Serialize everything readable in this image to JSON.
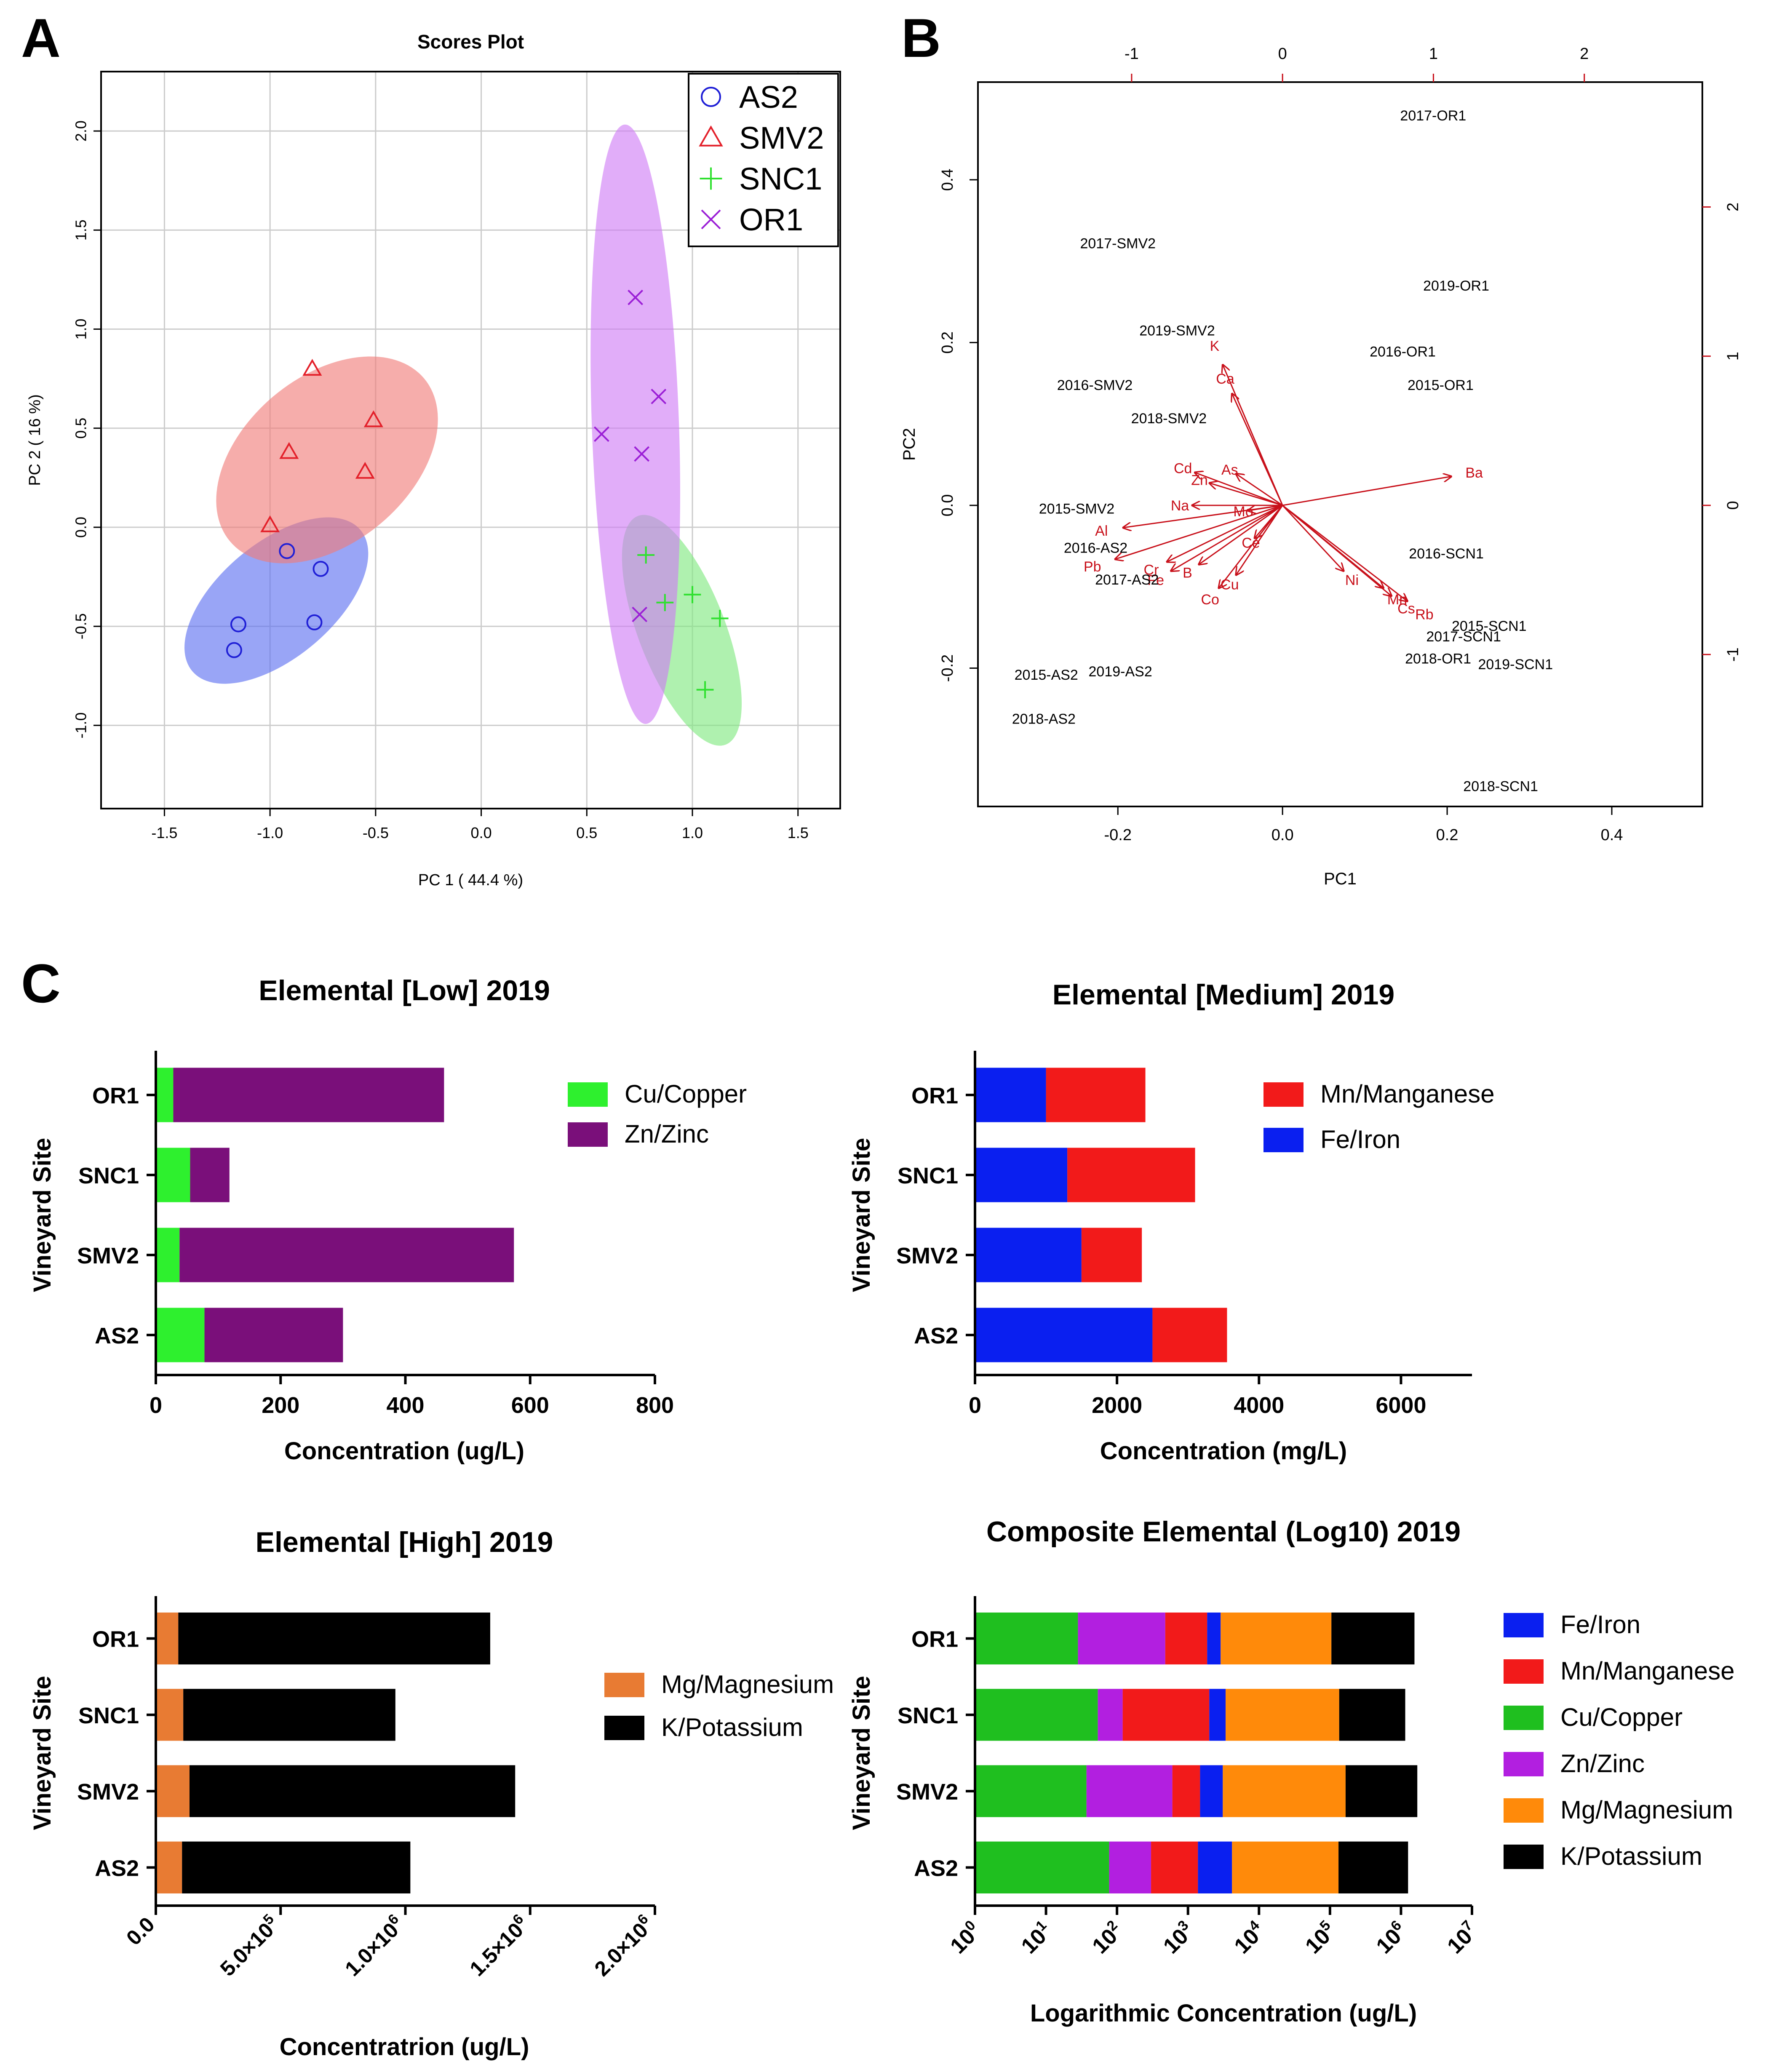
{
  "panel_labels": {
    "a": "A",
    "b": "B",
    "c": "C"
  },
  "colors": {
    "AS2": "#1f1fd6",
    "SMV2": "#e3202a",
    "SNC1": "#2fe02f",
    "OR1": "#9b1fd6",
    "ell_AS2": "#5a6ef0",
    "ell_SMV2": "#f07a78",
    "ell_SNC1": "#7ee87e",
    "ell_OR1": "#cf7af5",
    "bright_green": "#2ef02e",
    "purple": "#7a0f7a",
    "blue": "#0a1ff0",
    "red": "#f21a1a",
    "orange_mg": "#e87b33",
    "black": "#000000",
    "green": "#1fbf1f",
    "violet": "#b21fe0",
    "orange": "#ff8a0a",
    "biplot_red": "#c8101a"
  },
  "chart_data": [
    {
      "id": "A",
      "type": "scatter",
      "title": "Scores Plot",
      "xlabel": "PC 1 ( 44.4 %)",
      "ylabel": "PC 2 ( 16 %)",
      "xlim": [
        -1.8,
        1.7
      ],
      "ylim": [
        -1.42,
        2.3
      ],
      "xticks": [
        -1.5,
        -1.0,
        -0.5,
        0.0,
        0.5,
        1.0,
        1.5
      ],
      "xtick_labels": [
        "-1.5",
        "-1.0",
        "-0.5",
        "0.0",
        "0.5",
        "1.0",
        "1.5"
      ],
      "yticks": [
        -1.0,
        -0.5,
        0.0,
        0.5,
        1.0,
        1.5,
        2.0
      ],
      "ytick_labels": [
        "-1.0",
        "-0.5",
        "0.0",
        "0.5",
        "1.0",
        "1.5",
        "2.0"
      ],
      "grid": true,
      "legend_position": "top-right",
      "series": [
        {
          "name": "AS2",
          "marker": "circle",
          "points": [
            [
              -0.92,
              -0.12
            ],
            [
              -0.76,
              -0.21
            ],
            [
              -1.15,
              -0.49
            ],
            [
              -0.79,
              -0.48
            ],
            [
              -1.17,
              -0.62
            ]
          ],
          "ellipse": {
            "cx": -0.97,
            "cy": -0.37,
            "rx": 0.52,
            "ry": 0.29,
            "angle": 40
          }
        },
        {
          "name": "SMV2",
          "marker": "triangle",
          "points": [
            [
              -0.8,
              0.8
            ],
            [
              -0.51,
              0.54
            ],
            [
              -0.91,
              0.38
            ],
            [
              -0.55,
              0.28
            ],
            [
              -1.0,
              0.01
            ]
          ],
          "ellipse": {
            "cx": -0.73,
            "cy": 0.34,
            "rx": 0.6,
            "ry": 0.42,
            "angle": 40
          }
        },
        {
          "name": "SNC1",
          "marker": "plus",
          "points": [
            [
              0.78,
              -0.14
            ],
            [
              0.87,
              -0.38
            ],
            [
              1.0,
              -0.34
            ],
            [
              1.13,
              -0.46
            ],
            [
              1.06,
              -0.82
            ]
          ],
          "ellipse": {
            "cx": 0.95,
            "cy": -0.52,
            "rx": 0.58,
            "ry": 0.22,
            "angle": -69
          }
        },
        {
          "name": "OR1",
          "marker": "x",
          "points": [
            [
              0.73,
              1.16
            ],
            [
              0.84,
              0.66
            ],
            [
              0.57,
              0.47
            ],
            [
              0.76,
              0.37
            ],
            [
              0.75,
              -0.44
            ]
          ],
          "ellipse": {
            "cx": 0.73,
            "cy": 0.52,
            "rx": 1.42,
            "ry": 0.22,
            "angle": -88
          }
        }
      ]
    },
    {
      "id": "B",
      "type": "scatter",
      "xlabel": "PC1",
      "ylabel": "PC2",
      "xlim": [
        -0.37,
        0.51
      ],
      "ylim": [
        -0.37,
        0.52
      ],
      "xticks": [
        -0.2,
        0.0,
        0.2,
        0.4
      ],
      "xtick_labels": [
        "-0.2",
        "0.0",
        "0.2",
        "0.4"
      ],
      "yticks": [
        -0.2,
        0.0,
        0.2,
        0.4
      ],
      "ytick_labels": [
        "-0.2",
        "0.0",
        "0.2",
        "0.4"
      ],
      "top_ticks": [
        -1,
        0,
        1,
        2
      ],
      "top_tick_labels": [
        "-1",
        "0",
        "1",
        "2"
      ],
      "right_ticks": [
        -1,
        0,
        1,
        2
      ],
      "right_tick_labels": [
        "-1",
        "0",
        "1",
        "2"
      ],
      "loading_scale": 0.1833,
      "samples": [
        {
          "label": "2017-OR1",
          "x": 0.183,
          "y": 0.479
        },
        {
          "label": "2017-SMV2",
          "x": -0.2,
          "y": 0.322
        },
        {
          "label": "2019-OR1",
          "x": 0.211,
          "y": 0.27
        },
        {
          "label": "2019-SMV2",
          "x": -0.128,
          "y": 0.215
        },
        {
          "label": "2016-OR1",
          "x": 0.146,
          "y": 0.189
        },
        {
          "label": "2016-SMV2",
          "x": -0.228,
          "y": 0.148
        },
        {
          "label": "2015-OR1",
          "x": 0.192,
          "y": 0.148
        },
        {
          "label": "2018-SMV2",
          "x": -0.138,
          "y": 0.107
        },
        {
          "label": "2015-SMV2",
          "x": -0.25,
          "y": -0.004
        },
        {
          "label": "2016-AS2",
          "x": -0.227,
          "y": -0.052
        },
        {
          "label": "2016-SCN1",
          "x": 0.199,
          "y": -0.059
        },
        {
          "label": "2017-AS2",
          "x": -0.189,
          "y": -0.091
        },
        {
          "label": "2015-SCN1",
          "x": 0.251,
          "y": -0.148
        },
        {
          "label": "2017-SCN1",
          "x": 0.22,
          "y": -0.161
        },
        {
          "label": "2018-OR1",
          "x": 0.189,
          "y": -0.188
        },
        {
          "label": "2019-SCN1",
          "x": 0.283,
          "y": -0.195
        },
        {
          "label": "2015-AS2",
          "x": -0.287,
          "y": -0.208
        },
        {
          "label": "2019-AS2",
          "x": -0.197,
          "y": -0.204
        },
        {
          "label": "2018-AS2",
          "x": -0.29,
          "y": -0.262
        },
        {
          "label": "2018-SCN1",
          "x": 0.265,
          "y": -0.345
        }
      ],
      "loadings": [
        {
          "label": "K",
          "x": -0.45,
          "y": 1.07
        },
        {
          "label": "Ca",
          "x": -0.38,
          "y": 0.85
        },
        {
          "label": "Ba",
          "x": 1.27,
          "y": 0.22
        },
        {
          "label": "Cd",
          "x": -0.66,
          "y": 0.25
        },
        {
          "label": "Zn",
          "x": -0.55,
          "y": 0.17
        },
        {
          "label": "As",
          "x": -0.35,
          "y": 0.24
        },
        {
          "label": "Na",
          "x": -0.68,
          "y": 0.0
        },
        {
          "label": "Mo",
          "x": -0.26,
          "y": -0.04
        },
        {
          "label": "Al",
          "x": -1.2,
          "y": -0.17
        },
        {
          "label": "Ce",
          "x": -0.21,
          "y": -0.25
        },
        {
          "label": "Pb",
          "x": -1.26,
          "y": -0.41
        },
        {
          "label": "Cr",
          "x": -0.87,
          "y": -0.43
        },
        {
          "label": "Fe",
          "x": -0.84,
          "y": -0.5
        },
        {
          "label": "B",
          "x": -0.63,
          "y": -0.45
        },
        {
          "label": "Cu",
          "x": -0.35,
          "y": -0.53
        },
        {
          "label": "Co",
          "x": -0.48,
          "y": -0.63
        },
        {
          "label": "Ni",
          "x": 0.46,
          "y": -0.5
        },
        {
          "label": "Mn",
          "x": 0.76,
          "y": -0.63
        },
        {
          "label": "Cs",
          "x": 0.82,
          "y": -0.69
        },
        {
          "label": "Rb",
          "x": 0.94,
          "y": -0.73
        }
      ]
    },
    {
      "id": "C1",
      "type": "bar",
      "orientation": "horizontal",
      "stacked": true,
      "title": "Elemental [Low] 2019",
      "xlabel": "Concentration (ug/L)",
      "ylabel": "Vineyard Site",
      "categories": [
        "OR1",
        "SNC1",
        "SMV2",
        "AS2"
      ],
      "series": [
        {
          "name": "Cu/Copper",
          "color_key": "bright_green",
          "values": [
            28,
            55,
            38,
            78
          ]
        },
        {
          "name": "Zn/Zinc",
          "color_key": "purple",
          "values": [
            434,
            63,
            536,
            222
          ]
        }
      ],
      "xlim": [
        0,
        800
      ],
      "xticks": [
        0,
        200,
        400,
        600,
        800
      ],
      "xtick_labels": [
        "0",
        "200",
        "400",
        "600",
        "800"
      ],
      "legend": [
        {
          "name": "Cu/Copper",
          "color_key": "bright_green"
        },
        {
          "name": "Zn/Zinc",
          "color_key": "purple"
        }
      ]
    },
    {
      "id": "C2",
      "type": "bar",
      "orientation": "horizontal",
      "stacked": true,
      "title": "Elemental [Medium] 2019",
      "xlabel": "Concentration (mg/L)",
      "ylabel": "Vineyard Site",
      "categories": [
        "OR1",
        "SNC1",
        "SMV2",
        "AS2"
      ],
      "series": [
        {
          "name": "Fe/Iron",
          "color_key": "blue",
          "values": [
            1000,
            1300,
            1500,
            2500
          ]
        },
        {
          "name": "Mn/Manganese",
          "color_key": "red",
          "values": [
            1400,
            1800,
            850,
            1050
          ]
        }
      ],
      "xlim": [
        0,
        7000
      ],
      "xticks": [
        0,
        2000,
        4000,
        6000
      ],
      "xtick_labels": [
        "0",
        "2000",
        "4000",
        "6000"
      ],
      "legend": [
        {
          "name": "Mn/Manganese",
          "color_key": "red"
        },
        {
          "name": "Fe/Iron",
          "color_key": "blue"
        }
      ]
    },
    {
      "id": "C3",
      "type": "bar",
      "orientation": "horizontal",
      "stacked": true,
      "title": "Elemental [High] 2019",
      "xlabel": "Concentratrion (ug/L)",
      "ylabel": "Vineyard Site",
      "categories": [
        "OR1",
        "SNC1",
        "SMV2",
        "AS2"
      ],
      "series": [
        {
          "name": "Mg/Magnesium",
          "color_key": "orange_mg",
          "values": [
            90000,
            110000,
            135000,
            105000
          ]
        },
        {
          "name": "K/Potassium",
          "color_key": "black",
          "values": [
            1250000,
            850000,
            1305000,
            915000
          ]
        }
      ],
      "xlim": [
        0,
        2000000
      ],
      "xticks": [
        0,
        500000,
        1000000,
        1500000,
        2000000
      ],
      "xtick_mantissa": [
        "0.0",
        "5.0×10",
        "1.0×10",
        "1.5×10",
        "2.0×10"
      ],
      "xtick_exponent": [
        "",
        "5",
        "6",
        "6",
        "6"
      ],
      "legend": [
        {
          "name": "Mg/Magnesium",
          "color_key": "orange_mg"
        },
        {
          "name": "K/Potassium",
          "color_key": "black"
        }
      ]
    },
    {
      "id": "C4",
      "type": "bar",
      "orientation": "horizontal",
      "stacked": true,
      "title": "Composite Elemental (Log10) 2019",
      "xlabel": "Logarithmic Concentration (ug/L)",
      "ylabel": "Vineyard Site",
      "categories": [
        "OR1",
        "SNC1",
        "SMV2",
        "AS2"
      ],
      "scale": "log10",
      "segments_unit": "log10 decades",
      "series": [
        {
          "name": "Cu/Copper",
          "color_key": "green",
          "values": [
            1.45,
            1.73,
            1.57,
            1.89
          ]
        },
        {
          "name": "Zn/Zinc",
          "color_key": "violet",
          "values": [
            1.23,
            0.35,
            1.21,
            0.59
          ]
        },
        {
          "name": "Mn/Manganese",
          "color_key": "red",
          "values": [
            0.59,
            1.22,
            0.39,
            0.66
          ]
        },
        {
          "name": "Fe/Iron",
          "color_key": "blue",
          "values": [
            0.19,
            0.23,
            0.32,
            0.48
          ]
        },
        {
          "name": "Mg/Magnesium",
          "color_key": "orange",
          "values": [
            1.56,
            1.6,
            1.73,
            1.5
          ]
        },
        {
          "name": "K/Potassium",
          "color_key": "black",
          "values": [
            1.17,
            0.93,
            1.01,
            0.98
          ]
        }
      ],
      "xlim_exp": [
        0,
        7
      ],
      "xtick_base": "10",
      "xtick_exponents": [
        "0",
        "1",
        "2",
        "3",
        "4",
        "5",
        "6",
        "7"
      ],
      "legend": [
        {
          "name": "Fe/Iron",
          "color_key": "blue"
        },
        {
          "name": "Mn/Manganese",
          "color_key": "red"
        },
        {
          "name": "Cu/Copper",
          "color_key": "green"
        },
        {
          "name": "Zn/Zinc",
          "color_key": "violet"
        },
        {
          "name": "Mg/Magnesium",
          "color_key": "orange"
        },
        {
          "name": "K/Potassium",
          "color_key": "black"
        }
      ]
    }
  ]
}
